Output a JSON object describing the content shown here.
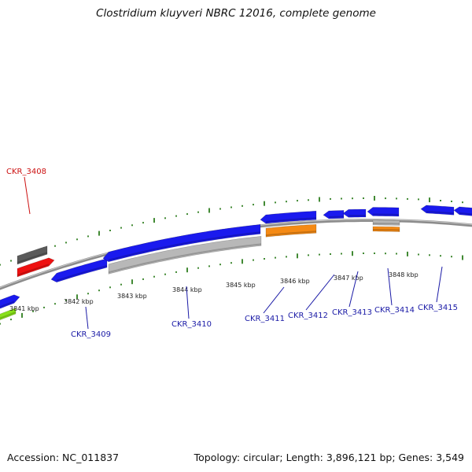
{
  "title": "Clostridium kluyveri NBRC 12016, complete genome",
  "footer": {
    "accession": "Accession: NC_011837",
    "summary": "Topology: circular; Length: 3,896,121 bp; Genes: 3,549"
  },
  "colors": {
    "backbone": "#8c8c8c",
    "tick": "#2e7d1e",
    "cds_forward": "#1a1aee",
    "cds_reverse_gray": "#b8b8b8",
    "cds_orange": "#f58a14",
    "red": "#ee1111",
    "dark_gray": "#5a5a5a",
    "lime": "#88e01a",
    "label_blue": "#1a1aa6",
    "label_red": "#cc1111"
  },
  "kbp_labels": [
    "3841 kbp",
    "3842 kbp",
    "3843 kbp",
    "3844 kbp",
    "3845 kbp",
    "3846 kbp",
    "3847 kbp",
    "3848 kbp"
  ],
  "gene_labels": [
    "CKR_3408",
    "CKR_3409",
    "CKR_3410",
    "CKR_3411",
    "CKR_3412",
    "CKR_3413",
    "CKR_3414",
    "CKR_3415"
  ]
}
